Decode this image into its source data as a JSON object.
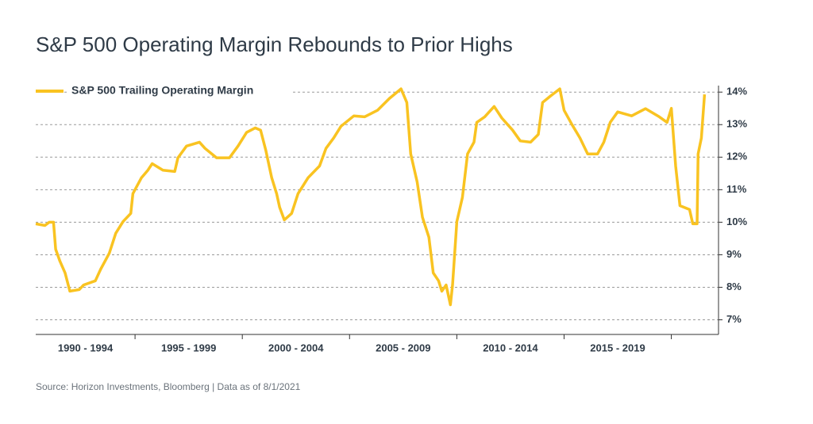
{
  "chart_data": {
    "type": "line",
    "title": "S&P 500 Operating Margin Rebounds to Prior Highs",
    "source": "Source:  Horizon Investments, Bloomberg | Data as of 8/1/2021",
    "legend": "top-left",
    "grid": true,
    "xlim": [
      1990.37,
      2022.2
    ],
    "ylim": [
      6.55,
      14.2
    ],
    "yticks": [
      {
        "value": 7,
        "label": "7%"
      },
      {
        "value": 8,
        "label": "8%"
      },
      {
        "value": 9,
        "label": "9%"
      },
      {
        "value": 10,
        "label": "10%"
      },
      {
        "value": 11,
        "label": "11%"
      },
      {
        "value": 12,
        "label": "12%"
      },
      {
        "value": 13,
        "label": "13%"
      },
      {
        "value": 14,
        "label": "14%"
      }
    ],
    "xticks": [
      {
        "value": 1990,
        "label": "1990 - 1994"
      },
      {
        "value": 1995,
        "label": "1995 - 1999"
      },
      {
        "value": 2000,
        "label": "2000 - 2004"
      },
      {
        "value": 2005,
        "label": "2005 - 2009"
      },
      {
        "value": 2010,
        "label": "2010 - 2014"
      },
      {
        "value": 2015,
        "label": "2015 - 2019"
      }
    ],
    "x_minor_ticks": [
      1995,
      2000,
      2005,
      2010,
      2015,
      2020
    ],
    "series": [
      {
        "name": "S&P 500 Trailing Operating Margin",
        "color": "#f9c321",
        "x": [
          1990.37,
          1990.8,
          1991.0,
          1991.2,
          1991.3,
          1991.5,
          1991.74,
          1991.96,
          1992.4,
          1992.6,
          1993.15,
          1993.4,
          1993.8,
          1994.1,
          1994.44,
          1994.8,
          1994.9,
          1995.3,
          1995.6,
          1995.8,
          1996.3,
          1996.85,
          1997.0,
          1997.4,
          1998.0,
          1998.26,
          1998.8,
          1999.4,
          1999.8,
          2000.2,
          2000.6,
          2000.85,
          2001.1,
          2001.37,
          2001.6,
          2001.74,
          2001.96,
          2002.3,
          2002.6,
          2003.07,
          2003.6,
          2003.9,
          2004.26,
          2004.6,
          2005.2,
          2005.7,
          2006.3,
          2006.85,
          2007.4,
          2007.67,
          2007.85,
          2008.15,
          2008.4,
          2008.7,
          2008.9,
          2009.15,
          2009.3,
          2009.5,
          2009.7,
          2009.8,
          2010.0,
          2010.26,
          2010.5,
          2010.8,
          2010.93,
          2011.3,
          2011.74,
          2012.1,
          2012.6,
          2012.96,
          2013.44,
          2013.8,
          2014.0,
          2014.37,
          2014.8,
          2015.0,
          2015.37,
          2015.74,
          2016.1,
          2016.56,
          2016.85,
          2017.15,
          2017.5,
          2018.15,
          2018.8,
          2019.44,
          2019.8,
          2020.0,
          2020.2,
          2020.4,
          2020.85,
          2021.0,
          2021.2,
          2021.25,
          2021.4,
          2021.55
        ],
        "values": [
          9.95,
          9.9,
          10.0,
          10.0,
          9.17,
          8.8,
          8.44,
          7.88,
          7.93,
          8.07,
          8.2,
          8.56,
          9.05,
          9.66,
          10.02,
          10.27,
          10.88,
          11.37,
          11.6,
          11.8,
          11.6,
          11.56,
          11.98,
          12.34,
          12.46,
          12.27,
          11.98,
          11.98,
          12.34,
          12.76,
          12.9,
          12.83,
          12.2,
          11.37,
          10.88,
          10.46,
          10.07,
          10.27,
          10.88,
          11.37,
          11.73,
          12.27,
          12.59,
          12.95,
          13.27,
          13.24,
          13.44,
          13.8,
          14.1,
          13.68,
          12.1,
          11.24,
          10.15,
          9.54,
          8.44,
          8.2,
          7.88,
          8.07,
          7.46,
          8.07,
          10.02,
          10.76,
          12.1,
          12.46,
          13.07,
          13.24,
          13.56,
          13.2,
          12.83,
          12.5,
          12.46,
          12.7,
          13.68,
          13.88,
          14.1,
          13.44,
          13.0,
          12.59,
          12.1,
          12.1,
          12.46,
          13.07,
          13.39,
          13.27,
          13.49,
          13.24,
          13.07,
          13.5,
          11.73,
          10.51,
          10.39,
          9.95,
          9.95,
          12.1,
          12.59,
          13.93
        ]
      }
    ]
  }
}
